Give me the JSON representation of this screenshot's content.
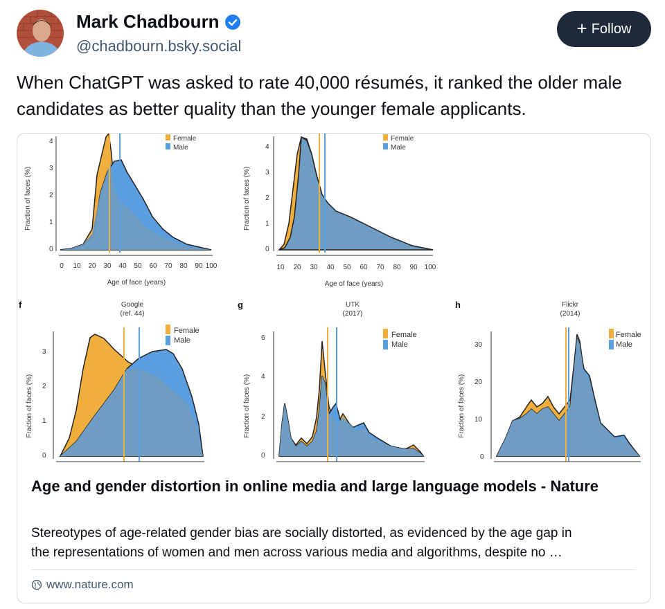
{
  "author": {
    "name": "Mark Chadbourn",
    "handle": "@chadbourn.bsky.social",
    "verified_color": "#1e7ef2"
  },
  "follow_button": {
    "label": "Follow"
  },
  "post": {
    "text": "When ChatGPT was asked to rate 40,000 résumés, it ranked the older male candidates as better quality than the younger female applicants."
  },
  "link_card": {
    "title": "Age and gender distortion in online media and large language models - Nature",
    "description_line1": "Stereotypes of age-related gender bias are socially distorted, as evidenced by the age gap in",
    "description_line2": "the representations of women and men across various media and algorithms, despite no …",
    "domain": "www.nature.com"
  },
  "figure": {
    "colors": {
      "female": "#f0ae3c",
      "male": "#5a9ee0",
      "overlap": "#6f9cc2"
    },
    "legend": {
      "female": "Female",
      "male": "Male"
    },
    "ylabel": "Fraction of faces (%)",
    "xlabel": "Age of face (years)",
    "panels": {
      "top_left": {
        "xticks": [
          "0",
          "10",
          "20",
          "30",
          "40",
          "50",
          "60",
          "70",
          "80",
          "90",
          "100"
        ],
        "yticks": [
          "0",
          "1",
          "2",
          "3",
          "4"
        ]
      },
      "top_mid": {
        "xticks": [
          "10",
          "20",
          "30",
          "40",
          "50",
          "60",
          "70",
          "80",
          "90",
          "100"
        ],
        "yticks": [
          "0",
          "1",
          "2",
          "3",
          "4"
        ]
      },
      "f": {
        "letter": "f",
        "title_line1": "Google",
        "title_line2": "(ref. 44)",
        "yticks": [
          "0",
          "1",
          "2",
          "3"
        ]
      },
      "g": {
        "letter": "g",
        "title_line1": "UTK",
        "title_line2": "(2017)",
        "yticks": [
          "0",
          "2",
          "4",
          "6"
        ]
      },
      "h": {
        "letter": "h",
        "title_line1": "Flickr",
        "title_line2": "(2014)",
        "yticks": [
          "0",
          "10",
          "20",
          "30"
        ]
      }
    }
  }
}
